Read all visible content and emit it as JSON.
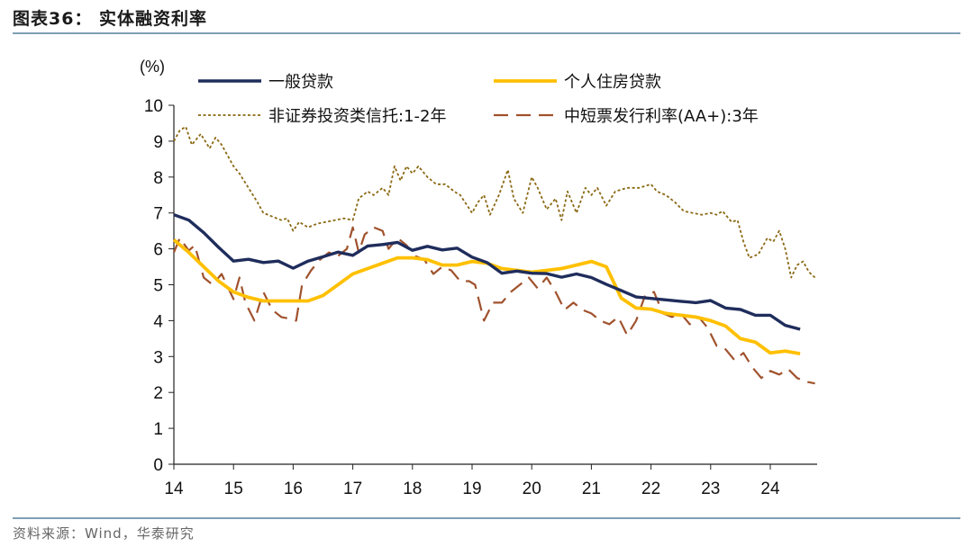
{
  "header": {
    "title": "图表36：  实体融资利率"
  },
  "footer": {
    "source": "资料来源：Wind，华泰研究"
  },
  "colors": {
    "general_loans": "#1f2d5c",
    "housing_loans": "#ffc000",
    "nonstandard_trust": "#8b6914",
    "mtn_rate": "#a0522d",
    "rule": "#7f9fb6"
  },
  "chart_data": {
    "type": "line",
    "title": "实体融资利率",
    "unit": "(%)",
    "xlabel": "",
    "ylabel": "(%)",
    "ylim": [
      0,
      10
    ],
    "xlim": [
      14,
      24.8
    ],
    "x_ticks": [
      "14",
      "15",
      "16",
      "17",
      "18",
      "19",
      "20",
      "21",
      "22",
      "23",
      "24"
    ],
    "y_ticks": [
      "0",
      "1",
      "2",
      "3",
      "4",
      "5",
      "6",
      "7",
      "8",
      "9",
      "10"
    ],
    "legend_placement": "top",
    "series": [
      {
        "name": "一般贷款",
        "key": "general_loans",
        "style": "solid",
        "x": [
          14.0,
          14.25,
          14.5,
          14.75,
          15.0,
          15.25,
          15.5,
          15.75,
          16.0,
          16.25,
          16.5,
          16.75,
          17.0,
          17.25,
          17.5,
          17.75,
          18.0,
          18.25,
          18.5,
          18.75,
          19.0,
          19.25,
          19.5,
          19.75,
          20.0,
          20.25,
          20.5,
          20.75,
          21.0,
          21.25,
          21.5,
          21.75,
          22.0,
          22.25,
          22.5,
          22.75,
          23.0,
          23.25,
          23.5,
          23.75,
          24.0,
          24.25,
          24.5
        ],
        "values": [
          6.95,
          6.8,
          6.45,
          6.04,
          5.66,
          5.71,
          5.62,
          5.66,
          5.46,
          5.66,
          5.78,
          5.91,
          5.82,
          6.08,
          6.12,
          6.18,
          5.96,
          6.07,
          5.97,
          6.02,
          5.77,
          5.62,
          5.32,
          5.38,
          5.32,
          5.31,
          5.21,
          5.3,
          5.2,
          5.01,
          4.84,
          4.66,
          4.62,
          4.58,
          4.54,
          4.5,
          4.56,
          4.35,
          4.31,
          4.15,
          4.15,
          3.87,
          3.76
        ]
      },
      {
        "name": "个人住房贷款",
        "key": "housing_loans",
        "style": "solid",
        "x": [
          14.0,
          14.25,
          14.5,
          14.75,
          15.0,
          15.25,
          15.5,
          15.75,
          16.0,
          16.25,
          16.5,
          16.75,
          17.0,
          17.25,
          17.5,
          17.75,
          18.0,
          18.25,
          18.5,
          18.75,
          19.0,
          19.25,
          19.5,
          19.75,
          20.0,
          20.25,
          20.5,
          20.75,
          21.0,
          21.25,
          21.5,
          21.75,
          22.0,
          22.25,
          22.5,
          22.75,
          23.0,
          23.25,
          23.5,
          23.75,
          24.0,
          24.25,
          24.5
        ],
        "values": [
          6.25,
          5.9,
          5.5,
          5.1,
          4.8,
          4.65,
          4.55,
          4.55,
          4.55,
          4.55,
          4.7,
          5.0,
          5.3,
          5.45,
          5.6,
          5.75,
          5.75,
          5.7,
          5.55,
          5.55,
          5.65,
          5.6,
          5.45,
          5.4,
          5.35,
          5.4,
          5.45,
          5.55,
          5.65,
          5.5,
          4.63,
          4.35,
          4.32,
          4.2,
          4.15,
          4.1,
          4.0,
          3.85,
          3.5,
          3.4,
          3.1,
          3.15,
          3.08
        ]
      },
      {
        "name": "非证券投资类信托:1-2年",
        "key": "nonstandard_trust",
        "style": "dotted",
        "x": [
          14.0,
          14.1,
          14.2,
          14.3,
          14.45,
          14.6,
          14.7,
          14.8,
          15.0,
          15.1,
          15.25,
          15.4,
          15.5,
          15.65,
          15.8,
          15.9,
          16.0,
          16.1,
          16.25,
          16.4,
          16.55,
          16.7,
          16.85,
          17.0,
          17.1,
          17.25,
          17.35,
          17.5,
          17.6,
          17.7,
          17.8,
          17.9,
          18.0,
          18.1,
          18.25,
          18.4,
          18.55,
          18.7,
          18.8,
          18.9,
          19.0,
          19.1,
          19.2,
          19.3,
          19.45,
          19.6,
          19.7,
          19.85,
          20.0,
          20.1,
          20.25,
          20.4,
          20.5,
          20.6,
          20.75,
          20.9,
          21.0,
          21.1,
          21.25,
          21.4,
          21.6,
          21.8,
          22.0,
          22.1,
          22.25,
          22.4,
          22.55,
          22.7,
          22.85,
          23.0,
          23.1,
          23.2,
          23.35,
          23.45,
          23.55,
          23.65,
          23.8,
          23.95,
          24.05,
          24.15,
          24.25,
          24.35,
          24.45,
          24.55,
          24.65,
          24.75
        ],
        "values": [
          9.0,
          9.3,
          9.4,
          8.9,
          9.2,
          8.8,
          9.1,
          8.9,
          8.3,
          8.1,
          7.7,
          7.3,
          7.0,
          6.9,
          6.8,
          6.85,
          6.5,
          6.75,
          6.6,
          6.7,
          6.75,
          6.8,
          6.85,
          6.8,
          7.4,
          7.6,
          7.5,
          7.7,
          7.5,
          8.3,
          7.9,
          8.3,
          8.1,
          8.3,
          8.0,
          7.8,
          7.8,
          7.6,
          7.5,
          7.25,
          7.0,
          7.3,
          7.5,
          6.95,
          7.5,
          8.2,
          7.4,
          7.0,
          8.0,
          7.7,
          7.1,
          7.4,
          6.8,
          7.6,
          7.0,
          7.7,
          7.5,
          7.7,
          7.2,
          7.6,
          7.7,
          7.7,
          7.8,
          7.6,
          7.5,
          7.3,
          7.05,
          7.0,
          6.95,
          7.0,
          6.95,
          7.05,
          6.75,
          6.8,
          6.2,
          5.75,
          5.85,
          6.3,
          6.2,
          6.5,
          6.0,
          5.2,
          5.55,
          5.65,
          5.35,
          5.2
        ]
      },
      {
        "name": "中短票发行利率(AA+):3年",
        "key": "mtn_rate",
        "style": "dashed",
        "x": [
          14.0,
          14.1,
          14.25,
          14.35,
          14.5,
          14.65,
          14.8,
          15.0,
          15.1,
          15.2,
          15.35,
          15.5,
          15.65,
          15.8,
          15.95,
          16.05,
          16.15,
          16.3,
          16.45,
          16.6,
          16.75,
          16.9,
          17.0,
          17.1,
          17.2,
          17.35,
          17.5,
          17.6,
          17.75,
          17.9,
          18.05,
          18.2,
          18.35,
          18.5,
          18.65,
          18.8,
          18.95,
          19.05,
          19.2,
          19.35,
          19.5,
          19.65,
          19.8,
          19.95,
          20.1,
          20.25,
          20.4,
          20.55,
          20.7,
          20.85,
          21.0,
          21.15,
          21.3,
          21.45,
          21.6,
          21.75,
          21.9,
          22.05,
          22.2,
          22.35,
          22.5,
          22.65,
          22.8,
          22.95,
          23.1,
          23.25,
          23.4,
          23.55,
          23.7,
          23.85,
          24.0,
          24.15,
          24.3,
          24.45,
          24.6,
          24.75
        ],
        "values": [
          5.9,
          6.3,
          5.95,
          6.1,
          5.2,
          5.0,
          5.3,
          4.6,
          5.2,
          4.5,
          4.0,
          4.8,
          4.3,
          4.1,
          4.05,
          4.0,
          5.0,
          5.4,
          5.7,
          5.9,
          5.8,
          6.0,
          6.6,
          5.9,
          6.4,
          6.6,
          6.5,
          6.0,
          6.3,
          6.1,
          5.8,
          5.7,
          5.3,
          5.5,
          5.4,
          5.1,
          5.1,
          5.0,
          4.0,
          4.5,
          4.5,
          4.8,
          5.0,
          5.2,
          4.9,
          5.2,
          4.8,
          4.3,
          4.5,
          4.3,
          4.2,
          4.0,
          3.9,
          4.1,
          3.6,
          4.0,
          4.7,
          4.8,
          4.2,
          4.1,
          4.2,
          3.9,
          4.1,
          3.8,
          3.3,
          3.2,
          2.9,
          3.1,
          2.7,
          2.4,
          2.6,
          2.5,
          2.65,
          2.4,
          2.3,
          2.25
        ]
      }
    ]
  }
}
